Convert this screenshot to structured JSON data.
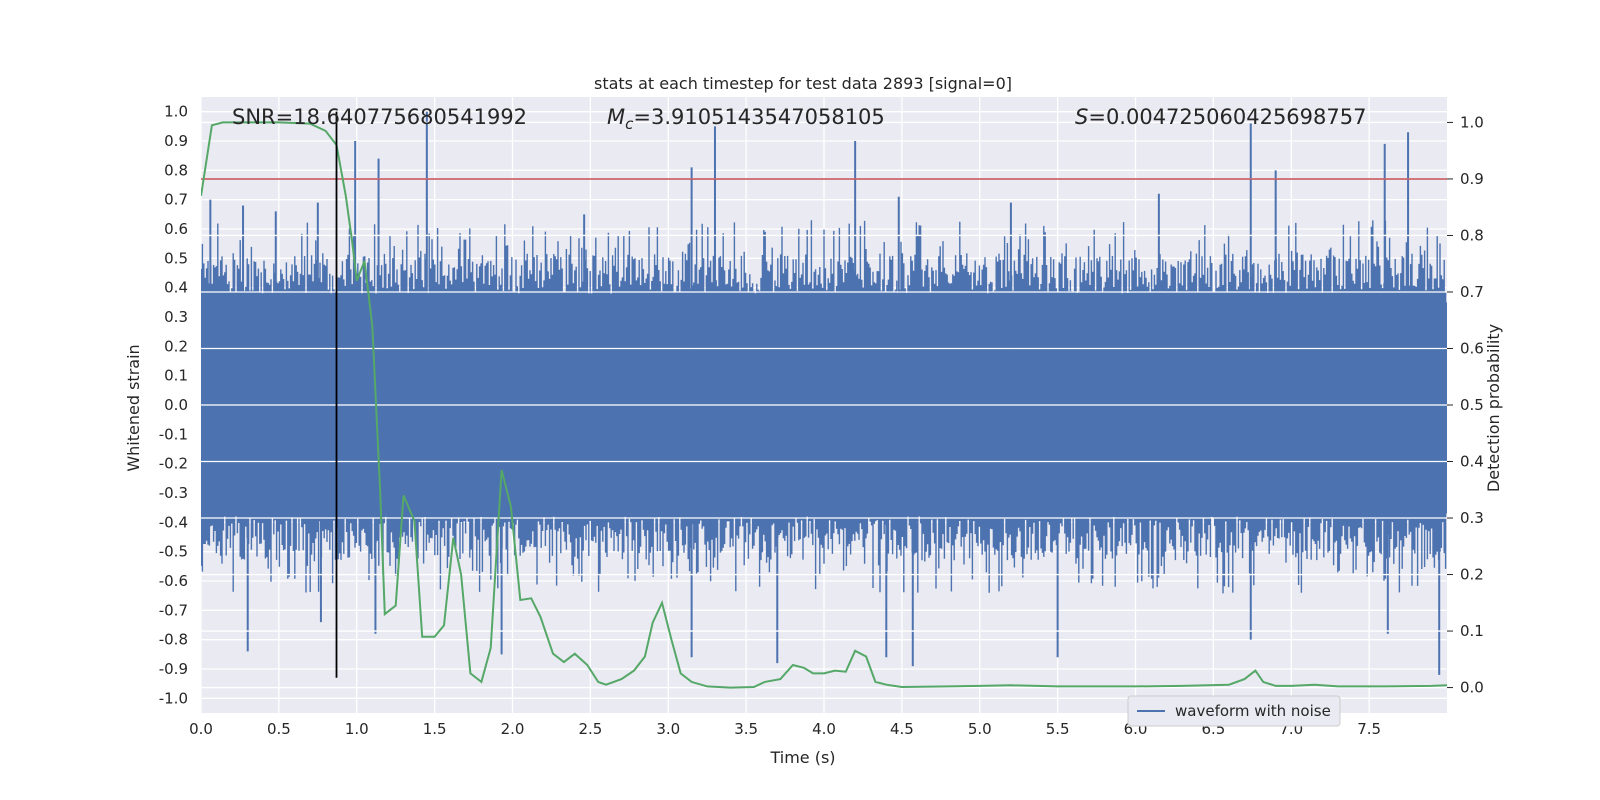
{
  "chart_data": {
    "type": "line",
    "title": "stats at each timestep for test data 2893 [signal=0]",
    "xlabel": "Time (s)",
    "ylabel": "Whitened strain",
    "y2label": "Detection probability",
    "xlim": [
      0.0,
      8.0
    ],
    "ylim": [
      -1.05,
      1.05
    ],
    "y2lim": [
      -0.045,
      1.045
    ],
    "xticks": [
      "0.0",
      "0.5",
      "1.0",
      "1.5",
      "2.0",
      "2.5",
      "3.0",
      "3.5",
      "4.0",
      "4.5",
      "5.0",
      "5.5",
      "6.0",
      "6.5",
      "7.0",
      "7.5"
    ],
    "xtick_values": [
      0.0,
      0.5,
      1.0,
      1.5,
      2.0,
      2.5,
      3.0,
      3.5,
      4.0,
      4.5,
      5.0,
      5.5,
      6.0,
      6.5,
      7.0,
      7.5
    ],
    "yticks": [
      "1.0",
      "0.9",
      "0.8",
      "0.7",
      "0.6",
      "0.5",
      "0.4",
      "0.3",
      "0.2",
      "0.1",
      "0.0",
      "-0.1",
      "-0.2",
      "-0.3",
      "-0.4",
      "-0.5",
      "-0.6",
      "-0.7",
      "-0.8",
      "-0.9",
      "-1.0"
    ],
    "ytick_values": [
      1.0,
      0.9,
      0.8,
      0.7,
      0.6,
      0.5,
      0.4,
      0.3,
      0.2,
      0.1,
      0.0,
      -0.1,
      -0.2,
      -0.3,
      -0.4,
      -0.5,
      -0.6,
      -0.7,
      -0.8,
      -0.9,
      -1.0
    ],
    "y2ticks": [
      "1.0",
      "0.9",
      "0.8",
      "0.7",
      "0.6",
      "0.5",
      "0.4",
      "0.3",
      "0.2",
      "0.1",
      "0.0"
    ],
    "y2tick_values": [
      1.0,
      0.9,
      0.8,
      0.7,
      0.6,
      0.5,
      0.4,
      0.3,
      0.2,
      0.1,
      0.0
    ],
    "annotations": {
      "snr": "SNR=18.640775680541992",
      "mc_symbol": "M",
      "mc_sub": "c",
      "mc_value": "=3.9105143547058105",
      "s_symbol": "S",
      "s_value": "=0.004725060425698757"
    },
    "threshold": 0.9,
    "vline_x": 0.87,
    "legend": [
      "waveform with noise"
    ],
    "series": [
      {
        "name": "waveform with noise",
        "axis": "left",
        "style": "noise",
        "x_range": [
          0.0,
          8.0
        ],
        "core_band": [
          -0.37,
          0.35
        ],
        "typical_peak_range": [
          0.38,
          0.63
        ],
        "spikes": [
          {
            "x": 0.06,
            "y": 0.7
          },
          {
            "x": 0.27,
            "y": 0.68
          },
          {
            "x": 0.48,
            "y": 0.66
          },
          {
            "x": 0.75,
            "y": 0.69
          },
          {
            "x": 0.99,
            "y": 0.9
          },
          {
            "x": 1.14,
            "y": 0.84
          },
          {
            "x": 1.45,
            "y": 1.0
          },
          {
            "x": 2.46,
            "y": 0.65
          },
          {
            "x": 3.3,
            "y": 0.95
          },
          {
            "x": 3.15,
            "y": 0.81
          },
          {
            "x": 4.2,
            "y": 0.9
          },
          {
            "x": 4.48,
            "y": 0.71
          },
          {
            "x": 5.2,
            "y": 0.69
          },
          {
            "x": 6.15,
            "y": 0.72
          },
          {
            "x": 6.74,
            "y": 0.96
          },
          {
            "x": 6.9,
            "y": 0.8
          },
          {
            "x": 7.6,
            "y": 0.89
          },
          {
            "x": 7.75,
            "y": 0.93
          },
          {
            "x": 0.3,
            "y": -0.84
          },
          {
            "x": 0.77,
            "y": -0.74
          },
          {
            "x": 1.12,
            "y": -0.78
          },
          {
            "x": 1.93,
            "y": -0.85
          },
          {
            "x": 3.15,
            "y": -0.86
          },
          {
            "x": 3.7,
            "y": -0.88
          },
          {
            "x": 4.4,
            "y": -0.86
          },
          {
            "x": 4.57,
            "y": -0.89
          },
          {
            "x": 5.5,
            "y": -0.86
          },
          {
            "x": 6.74,
            "y": -0.8
          },
          {
            "x": 7.62,
            "y": -0.78
          },
          {
            "x": 7.95,
            "y": -0.92
          }
        ]
      },
      {
        "name": "detection probability",
        "axis": "right",
        "color": "#55a868",
        "points": [
          [
            0.0,
            0.87
          ],
          [
            0.07,
            0.995
          ],
          [
            0.14,
            1.0
          ],
          [
            0.3,
            1.0
          ],
          [
            0.5,
            1.0
          ],
          [
            0.7,
            0.998
          ],
          [
            0.8,
            0.985
          ],
          [
            0.87,
            0.96
          ],
          [
            0.93,
            0.87
          ],
          [
            0.97,
            0.79
          ],
          [
            1.0,
            0.72
          ],
          [
            1.05,
            0.755
          ],
          [
            1.1,
            0.64
          ],
          [
            1.15,
            0.35
          ],
          [
            1.18,
            0.13
          ],
          [
            1.25,
            0.145
          ],
          [
            1.3,
            0.34
          ],
          [
            1.37,
            0.295
          ],
          [
            1.42,
            0.09
          ],
          [
            1.5,
            0.09
          ],
          [
            1.56,
            0.11
          ],
          [
            1.62,
            0.265
          ],
          [
            1.67,
            0.2
          ],
          [
            1.73,
            0.025
          ],
          [
            1.8,
            0.01
          ],
          [
            1.86,
            0.07
          ],
          [
            1.93,
            0.385
          ],
          [
            1.99,
            0.32
          ],
          [
            2.05,
            0.155
          ],
          [
            2.12,
            0.158
          ],
          [
            2.18,
            0.125
          ],
          [
            2.26,
            0.06
          ],
          [
            2.33,
            0.045
          ],
          [
            2.4,
            0.06
          ],
          [
            2.48,
            0.04
          ],
          [
            2.55,
            0.01
          ],
          [
            2.6,
            0.005
          ],
          [
            2.7,
            0.015
          ],
          [
            2.78,
            0.03
          ],
          [
            2.85,
            0.055
          ],
          [
            2.9,
            0.115
          ],
          [
            2.96,
            0.15
          ],
          [
            3.02,
            0.085
          ],
          [
            3.08,
            0.025
          ],
          [
            3.15,
            0.01
          ],
          [
            3.25,
            0.002
          ],
          [
            3.4,
            0.0
          ],
          [
            3.55,
            0.001
          ],
          [
            3.62,
            0.01
          ],
          [
            3.72,
            0.015
          ],
          [
            3.8,
            0.04
          ],
          [
            3.87,
            0.035
          ],
          [
            3.93,
            0.025
          ],
          [
            4.0,
            0.025
          ],
          [
            4.07,
            0.03
          ],
          [
            4.14,
            0.028
          ],
          [
            4.2,
            0.065
          ],
          [
            4.27,
            0.055
          ],
          [
            4.33,
            0.01
          ],
          [
            4.4,
            0.005
          ],
          [
            4.5,
            0.001
          ],
          [
            4.8,
            0.002
          ],
          [
            5.0,
            0.003
          ],
          [
            5.2,
            0.004
          ],
          [
            5.5,
            0.002
          ],
          [
            6.0,
            0.002
          ],
          [
            6.3,
            0.003
          ],
          [
            6.6,
            0.005
          ],
          [
            6.7,
            0.015
          ],
          [
            6.77,
            0.03
          ],
          [
            6.82,
            0.01
          ],
          [
            6.9,
            0.003
          ],
          [
            7.0,
            0.003
          ],
          [
            7.15,
            0.005
          ],
          [
            7.3,
            0.002
          ],
          [
            7.6,
            0.002
          ],
          [
            7.9,
            0.003
          ],
          [
            8.0,
            0.004
          ]
        ]
      }
    ]
  }
}
